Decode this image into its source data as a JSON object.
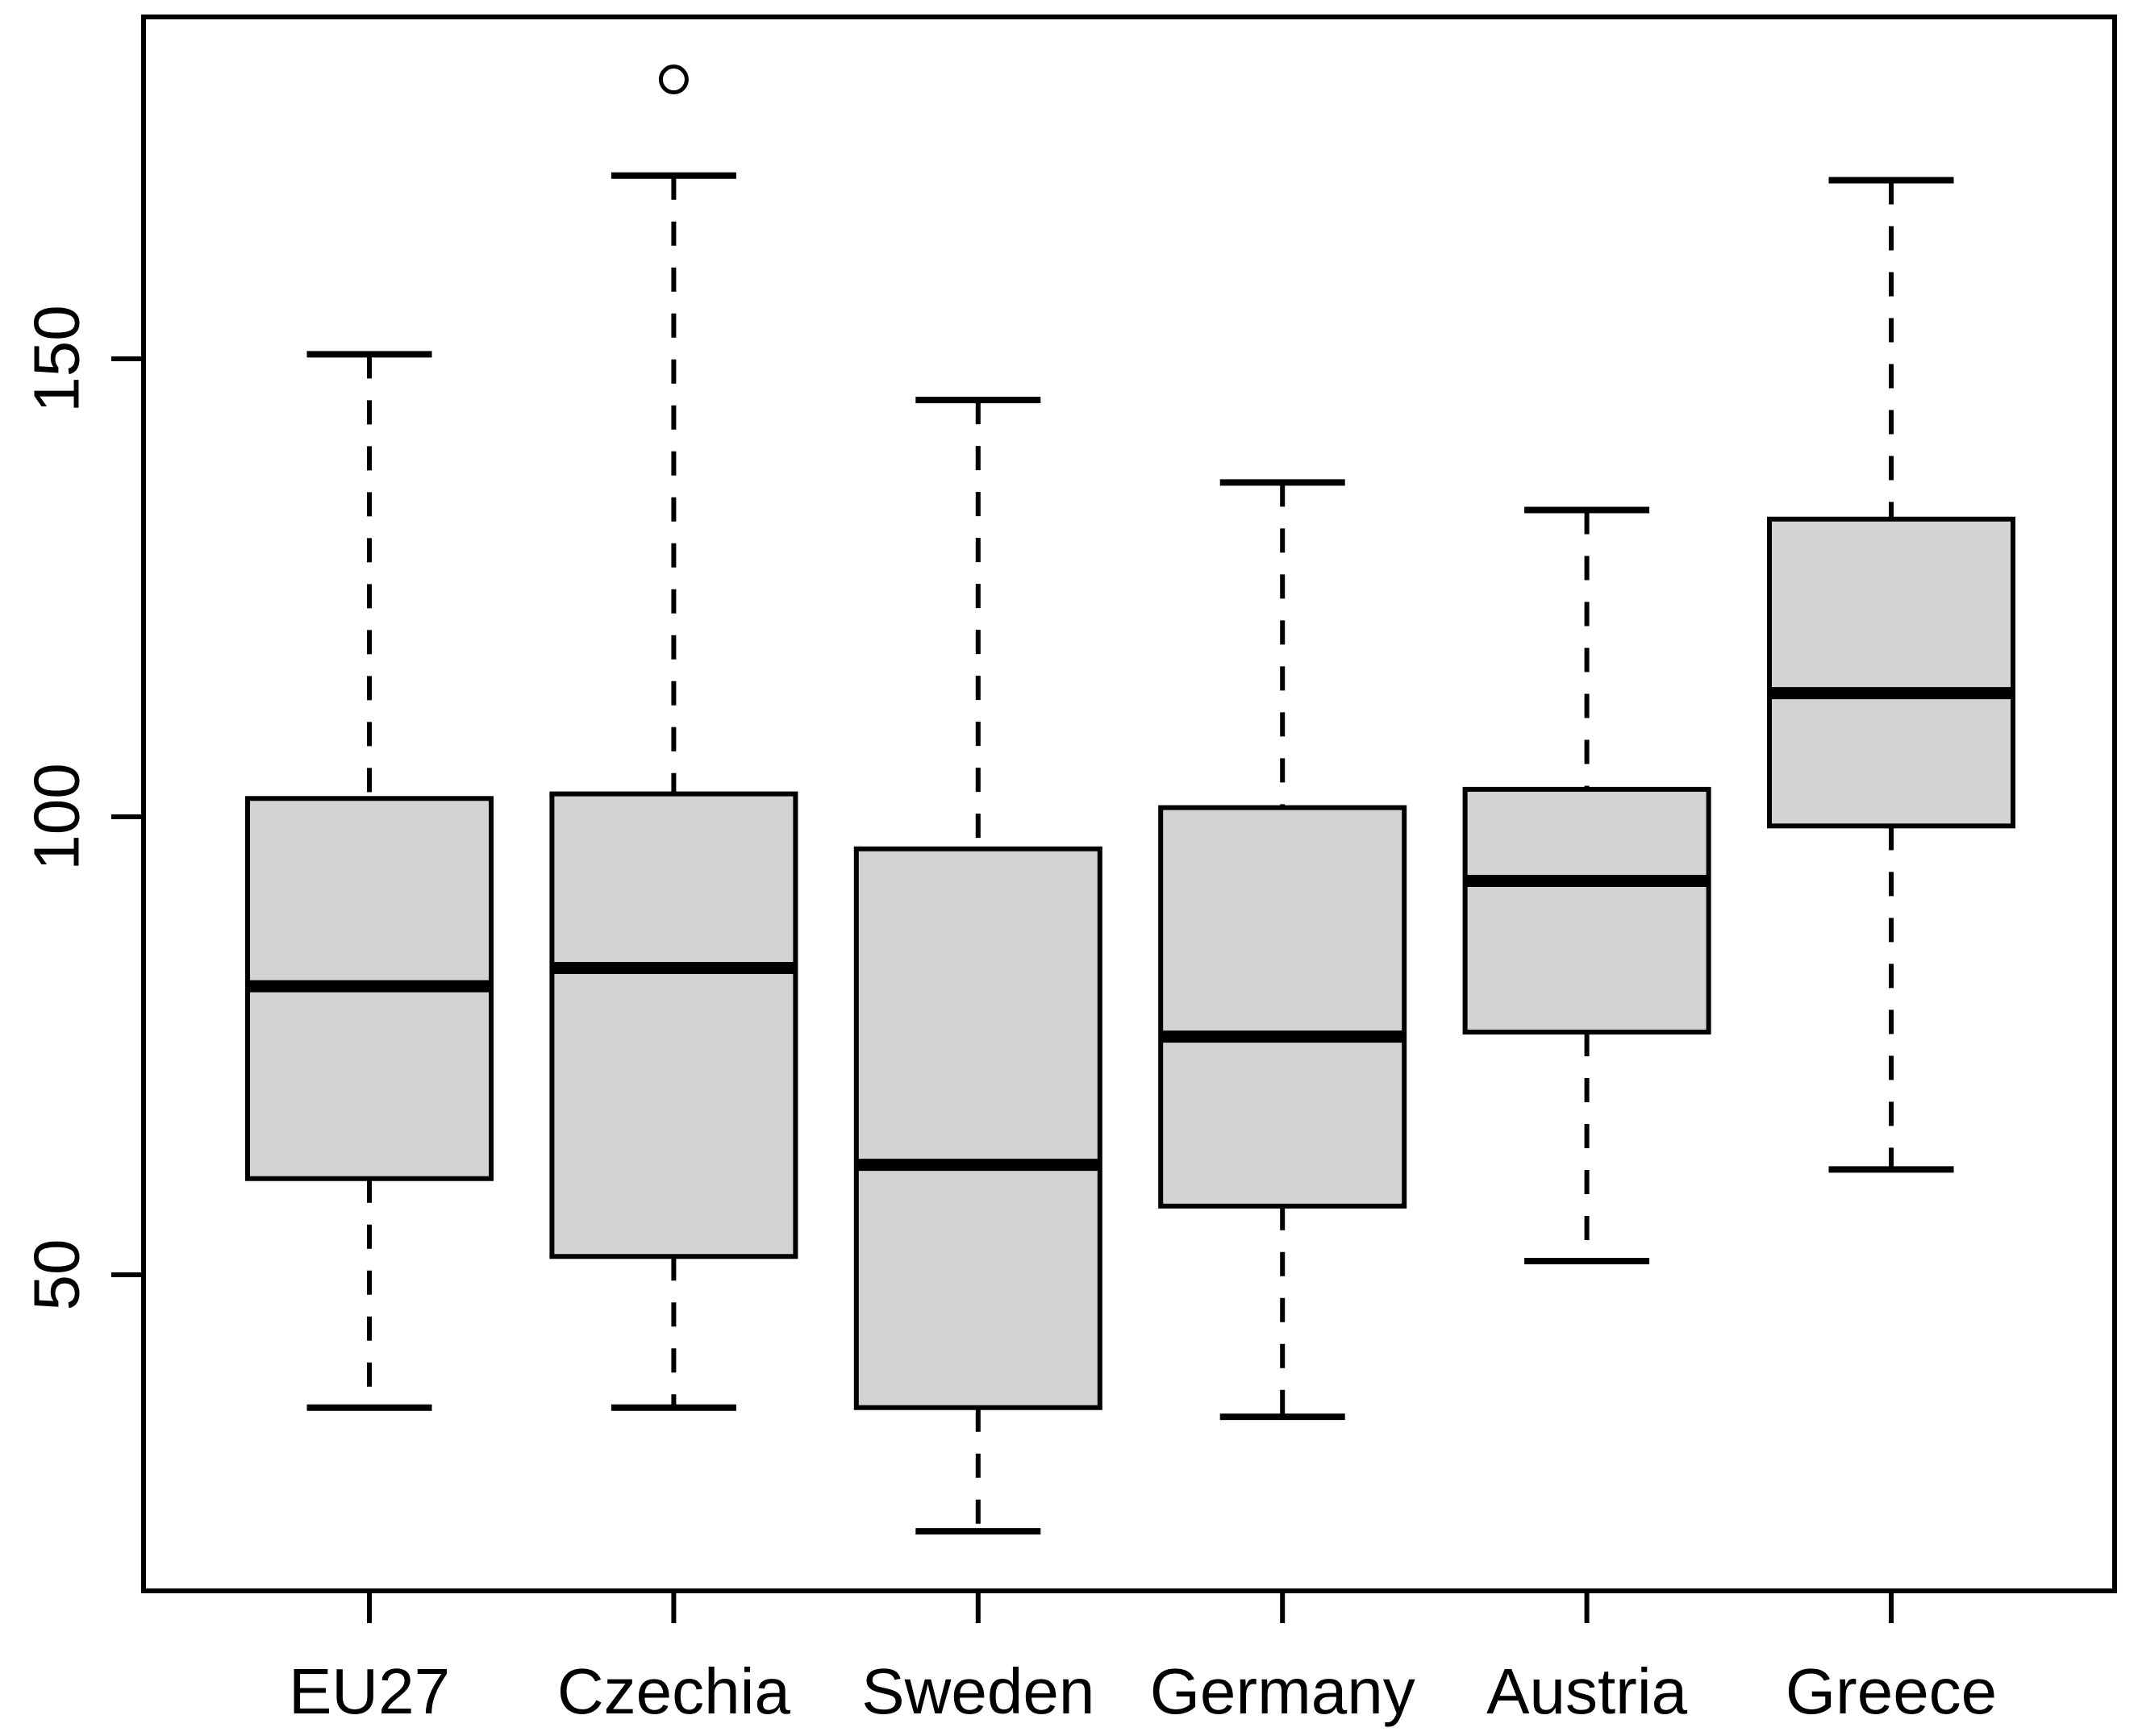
{
  "chart_data": {
    "type": "boxplot",
    "title": "",
    "xlabel": "",
    "ylabel": "",
    "categories": [
      "EU27",
      "Czechia",
      "Sweden",
      "Germany",
      "Austria",
      "Greece"
    ],
    "series": [
      {
        "name": "EU27",
        "whisker_low": 35.5,
        "q1": 60.5,
        "median": 81.5,
        "q3": 102.0,
        "whisker_high": 150.5,
        "outliers": []
      },
      {
        "name": "Czechia",
        "whisker_low": 35.5,
        "q1": 52.0,
        "median": 83.5,
        "q3": 102.5,
        "whisker_high": 170.0,
        "outliers": [
          180.5
        ]
      },
      {
        "name": "Sweden",
        "whisker_low": 22.0,
        "q1": 35.5,
        "median": 62.0,
        "q3": 96.5,
        "whisker_high": 145.5,
        "outliers": []
      },
      {
        "name": "Germany",
        "whisker_low": 34.5,
        "q1": 57.5,
        "median": 76.0,
        "q3": 101.0,
        "whisker_high": 136.5,
        "outliers": []
      },
      {
        "name": "Austria",
        "whisker_low": 51.5,
        "q1": 76.5,
        "median": 93.0,
        "q3": 103.0,
        "whisker_high": 133.5,
        "outliers": []
      },
      {
        "name": "Greece",
        "whisker_low": 61.5,
        "q1": 99.0,
        "median": 113.5,
        "q3": 132.5,
        "whisker_high": 169.5,
        "outliers": []
      }
    ],
    "y_ticks": [
      50,
      100,
      150
    ],
    "ylim": [
      15.5,
      187.3
    ],
    "grid": false,
    "legend": "none",
    "colors": {
      "box_fill": "#d3d3d3",
      "line": "#000000",
      "background": "#ffffff"
    }
  }
}
